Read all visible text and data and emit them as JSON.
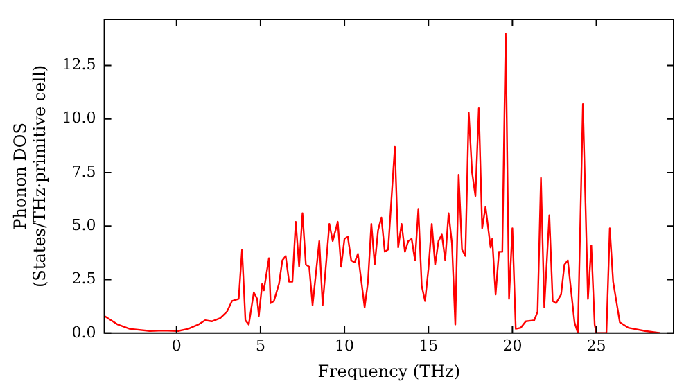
{
  "chart_data": {
    "type": "line",
    "xlabel": "Frequency (THz)",
    "ylabel": "Phonon DOS\n(States/THz·primitive cell)",
    "x": [
      -4.3,
      -3.9,
      -3.5,
      -2.8,
      -1.6,
      -0.8,
      0.1,
      0.7,
      1.3,
      1.7,
      2.1,
      2.6,
      3.0,
      3.3,
      3.7,
      3.9,
      4.1,
      4.3,
      4.6,
      4.8,
      4.9,
      5.1,
      5.2,
      5.5,
      5.6,
      5.8,
      6.1,
      6.3,
      6.5,
      6.7,
      6.9,
      7.1,
      7.3,
      7.5,
      7.7,
      7.9,
      8.1,
      8.5,
      8.7,
      9.1,
      9.3,
      9.6,
      9.8,
      10.0,
      10.2,
      10.4,
      10.6,
      10.8,
      11.2,
      11.4,
      11.6,
      11.8,
      12.0,
      12.2,
      12.4,
      12.6,
      13.0,
      13.2,
      13.4,
      13.6,
      13.8,
      14.0,
      14.2,
      14.4,
      14.6,
      14.8,
      15.0,
      15.2,
      15.4,
      15.6,
      15.8,
      16.0,
      16.2,
      16.4,
      16.6,
      16.8,
      17.0,
      17.2,
      17.4,
      17.6,
      17.8,
      18.0,
      18.2,
      18.4,
      18.7,
      18.8,
      19.0,
      19.2,
      19.4,
      19.6,
      19.8,
      20.0,
      20.2,
      20.5,
      20.8,
      21.3,
      21.5,
      21.7,
      21.9,
      22.2,
      22.4,
      22.6,
      22.9,
      23.1,
      23.3,
      23.7,
      23.9,
      24.2,
      24.5,
      24.7,
      24.9,
      25.0,
      25.6,
      25.8,
      26.0,
      26.4,
      26.9,
      27.9,
      28.8
    ],
    "series": [
      {
        "color": "#ff0000",
        "values": [
          0.8,
          0.6,
          0.4,
          0.2,
          0.1,
          0.12,
          0.1,
          0.2,
          0.4,
          0.6,
          0.55,
          0.7,
          1.0,
          1.5,
          1.6,
          3.9,
          0.6,
          0.4,
          1.9,
          1.6,
          0.8,
          2.3,
          2.0,
          3.5,
          1.4,
          1.5,
          2.3,
          3.4,
          3.6,
          2.4,
          2.4,
          5.2,
          3.1,
          5.6,
          3.2,
          3.1,
          1.3,
          4.3,
          1.3,
          5.1,
          4.3,
          5.2,
          3.1,
          4.4,
          4.5,
          3.4,
          3.3,
          3.7,
          1.2,
          2.4,
          5.1,
          3.2,
          4.8,
          5.4,
          3.8,
          3.9,
          8.7,
          4.0,
          5.1,
          3.8,
          4.3,
          4.4,
          3.4,
          5.8,
          2.2,
          1.5,
          3.0,
          5.1,
          3.2,
          4.3,
          4.6,
          3.4,
          5.6,
          4.2,
          0.4,
          7.4,
          3.9,
          3.6,
          10.3,
          7.5,
          6.4,
          10.5,
          4.9,
          5.9,
          4.0,
          4.4,
          1.8,
          3.8,
          3.8,
          14.0,
          1.6,
          4.9,
          0.2,
          0.25,
          0.55,
          0.6,
          1.0,
          7.25,
          1.2,
          5.5,
          1.5,
          1.4,
          1.8,
          3.2,
          3.4,
          0.5,
          0,
          10.7,
          1.6,
          4.1,
          0.4,
          0,
          0,
          4.9,
          2.4,
          0.5,
          0.25,
          0.1,
          0
        ]
      }
    ],
    "xlim": [
      -4.3,
      29.6
    ],
    "ylim": [
      0,
      14.65
    ],
    "xticks": [
      0,
      5,
      10,
      15,
      20,
      25
    ],
    "yticks": [
      {
        "value": 0,
        "label": "0.0"
      },
      {
        "value": 2.5,
        "label": "2.5"
      },
      {
        "value": 5,
        "label": "5.0"
      },
      {
        "value": 7.5,
        "label": "7.5"
      },
      {
        "value": 10,
        "label": "10.0"
      },
      {
        "value": 12.5,
        "label": "12.5"
      }
    ],
    "grid": false,
    "legend": false,
    "marker": "none",
    "line_style": "solid"
  }
}
